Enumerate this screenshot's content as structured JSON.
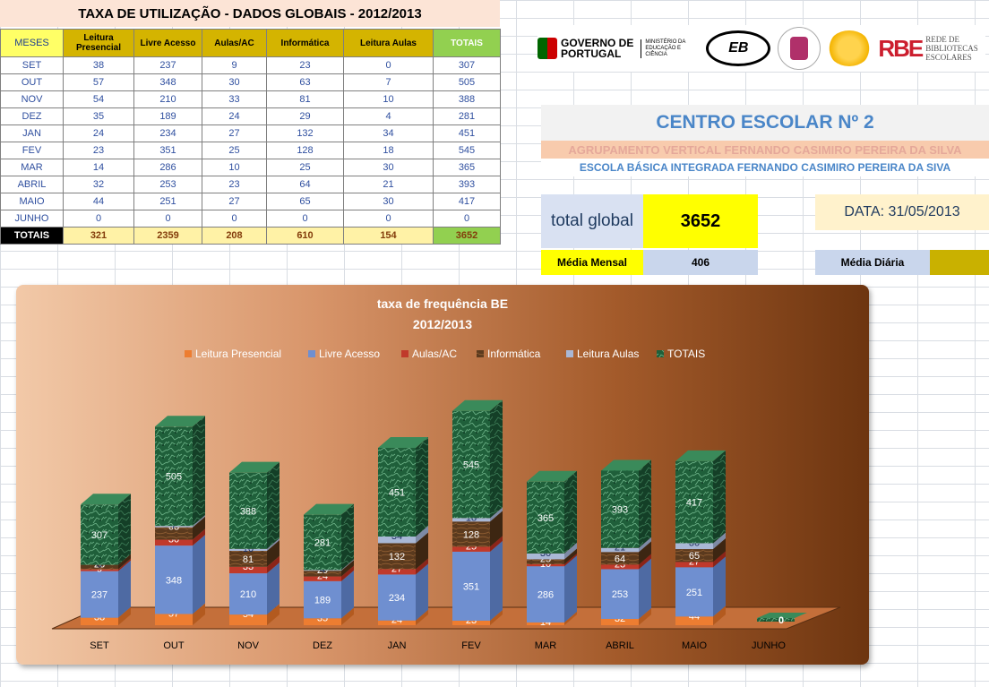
{
  "table": {
    "title": "TAXA DE UTILIZAÇÃO - DADOS GLOBAIS - 2012/2013",
    "headers": [
      "MESES",
      "Leitura Presencial",
      "Livre Acesso",
      "Aulas/AC",
      "Informática",
      "Leitura Aulas",
      "TOTAIS"
    ],
    "rows": [
      [
        "SET",
        "38",
        "237",
        "9",
        "23",
        "0",
        "307"
      ],
      [
        "OUT",
        "57",
        "348",
        "30",
        "63",
        "7",
        "505"
      ],
      [
        "NOV",
        "54",
        "210",
        "33",
        "81",
        "10",
        "388"
      ],
      [
        "DEZ",
        "35",
        "189",
        "24",
        "29",
        "4",
        "281"
      ],
      [
        "JAN",
        "24",
        "234",
        "27",
        "132",
        "34",
        "451"
      ],
      [
        "FEV",
        "23",
        "351",
        "25",
        "128",
        "18",
        "545"
      ],
      [
        "MAR",
        "14",
        "286",
        "10",
        "25",
        "30",
        "365"
      ],
      [
        "ABRIL",
        "32",
        "253",
        "23",
        "64",
        "21",
        "393"
      ],
      [
        "MAIO",
        "44",
        "251",
        "27",
        "65",
        "30",
        "417"
      ],
      [
        "JUNHO",
        "0",
        "0",
        "0",
        "0",
        "0",
        "0"
      ]
    ],
    "totals": [
      "TOTAIS",
      "321",
      "2359",
      "208",
      "610",
      "154",
      "3652"
    ]
  },
  "logos": {
    "gov_line1": "GOVERNO DE",
    "gov_line2": "PORTUGAL",
    "ministry": "MINISTÉRIO DA EDUCAÇÃO E CIÊNCIA",
    "eb": "EB",
    "rbe_mark": "RBE",
    "rbe_text": "REDE DE BIBLIOTECAS ESCOLARES"
  },
  "school": {
    "title": "CENTRO ESCOLAR Nº 2",
    "sub1": "AGRUPAMENTO VERTICAL FERNANDO CASIMIRO PEREIRA DA SILVA",
    "sub2": "ESCOLA BÁSICA INTEGRADA FERNANDO CASIMIRO PEREIRA DA SIVA"
  },
  "summary": {
    "total_label": "total global",
    "total_value": "3652",
    "date": "DATA: 31/05/2013",
    "media_mensal_label": "Média Mensal",
    "media_mensal_value": "406",
    "media_diaria_label": "Média Diária"
  },
  "colors": {
    "leitura_presencial": "#ed7d31",
    "livre_acesso": "#6f8fd0",
    "aulas_ac": "#c0392b",
    "informatica": "#5b3a1e",
    "leitura_aulas": "#a9b8d6",
    "totais": "#1f5f3a"
  },
  "chart_data": {
    "type": "bar",
    "stacked": true,
    "three_d": true,
    "title": "taxa de frequência BE",
    "subtitle": "2012/2013",
    "categories": [
      "SET",
      "OUT",
      "NOV",
      "DEZ",
      "JAN",
      "FEV",
      "MAR",
      "ABRIL",
      "MAIO",
      "JUNHO"
    ],
    "series": [
      {
        "name": "Leitura Presencial",
        "values": [
          38,
          57,
          54,
          35,
          24,
          23,
          14,
          32,
          44,
          0
        ]
      },
      {
        "name": "Livre Acesso",
        "values": [
          237,
          348,
          210,
          189,
          234,
          351,
          286,
          253,
          251,
          0
        ]
      },
      {
        "name": "Aulas/AC",
        "values": [
          9,
          30,
          33,
          24,
          27,
          25,
          10,
          23,
          27,
          0
        ]
      },
      {
        "name": "Informática",
        "values": [
          23,
          63,
          81,
          29,
          132,
          128,
          25,
          64,
          65,
          0
        ]
      },
      {
        "name": "Leitura Aulas",
        "values": [
          0,
          7,
          10,
          4,
          34,
          18,
          30,
          21,
          30,
          0
        ]
      },
      {
        "name": "TOTAIS",
        "values": [
          307,
          505,
          388,
          281,
          451,
          545,
          365,
          393,
          417,
          0
        ]
      }
    ],
    "legend_position": "top",
    "grid": false
  }
}
